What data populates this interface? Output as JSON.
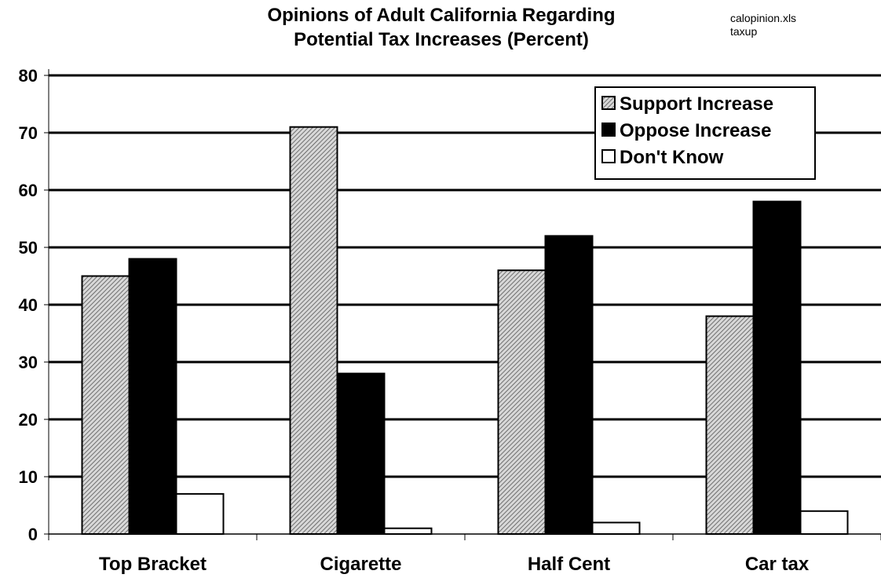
{
  "note": {
    "line1": "calopinion.xls",
    "line2": "taxup"
  },
  "colors": {
    "support_hatch_bg": "#d8d8d8",
    "support_hatch_line": "#555555",
    "oppose": "#000000",
    "dont_know": "#ffffff",
    "axis": "#000000"
  },
  "chart_data": {
    "type": "bar",
    "title": "Opinions of Adult California Regarding Potential Tax Increases (Percent)",
    "title_lines": [
      "Opinions of Adult California Regarding",
      "Potential Tax Increases (Percent)"
    ],
    "xlabel": "",
    "ylabel": "",
    "ylim": [
      0,
      80
    ],
    "yticks": [
      "0",
      "10",
      "20",
      "30",
      "40",
      "50",
      "60",
      "70",
      "80"
    ],
    "grid": true,
    "legend_position": "top-right",
    "categories": [
      "Top Bracket",
      "Cigarette",
      "Half Cent",
      "Car tax"
    ],
    "series": [
      {
        "name": "Support Increase",
        "values": [
          45,
          71,
          46,
          38
        ]
      },
      {
        "name": "Oppose Increase",
        "values": [
          48,
          28,
          52,
          58
        ]
      },
      {
        "name": "Don't Know",
        "values": [
          7,
          1,
          2,
          4
        ]
      }
    ]
  }
}
